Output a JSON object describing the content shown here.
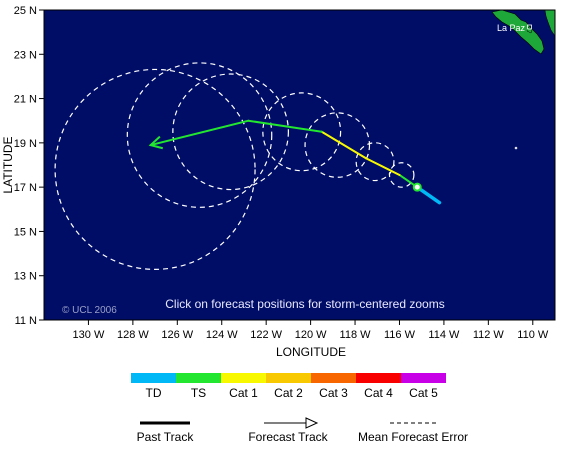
{
  "map": {
    "lon_range": [
      -132,
      -109
    ],
    "lat_range": [
      11,
      25
    ],
    "x_ticks": [
      {
        "lon": -130,
        "label": "130 W"
      },
      {
        "lon": -128,
        "label": "128 W"
      },
      {
        "lon": -126,
        "label": "126 W"
      },
      {
        "lon": -124,
        "label": "124 W"
      },
      {
        "lon": -122,
        "label": "122 W"
      },
      {
        "lon": -120,
        "label": "120 W"
      },
      {
        "lon": -118,
        "label": "118 W"
      },
      {
        "lon": -116,
        "label": "116 W"
      },
      {
        "lon": -114,
        "label": "114 W"
      },
      {
        "lon": -112,
        "label": "112 W"
      },
      {
        "lon": -110,
        "label": "110 W"
      }
    ],
    "y_ticks": [
      {
        "lat": 25,
        "label": "25 N"
      },
      {
        "lat": 23,
        "label": "23 N"
      },
      {
        "lat": 21,
        "label": "21 N"
      },
      {
        "lat": 19,
        "label": "19 N"
      },
      {
        "lat": 17,
        "label": "17 N"
      },
      {
        "lat": 15,
        "label": "15 N"
      },
      {
        "lat": 13,
        "label": "13 N"
      },
      {
        "lat": 11,
        "label": "11 N"
      }
    ],
    "xlabel": "LONGITUDE",
    "ylabel": "LATITUDE",
    "ocean_color": "#000d66",
    "land_color": "#1fa83a",
    "place_label": "La Paz",
    "copyright": "© UCL 2006",
    "click_hint": "Click on forecast positions for storm-centered zooms",
    "past_track": [
      {
        "lon": -114.2,
        "lat": 16.3,
        "category": "TD"
      },
      {
        "lon": -115.2,
        "lat": 17.0,
        "category": "TS"
      }
    ],
    "current_position": {
      "lon": -115.2,
      "lat": 17.0
    },
    "forecast_track": [
      {
        "lon": -115.2,
        "lat": 17.0,
        "category": "TS"
      },
      {
        "lon": -116.0,
        "lat": 17.55,
        "category": "TS"
      },
      {
        "lon": -117.5,
        "lat": 18.3,
        "category": "Cat 1"
      },
      {
        "lon": -119.5,
        "lat": 19.5,
        "category": "Cat 1"
      },
      {
        "lon": -122.8,
        "lat": 20.0,
        "category": "TS"
      },
      {
        "lon": -127.2,
        "lat": 18.9,
        "category": "TS"
      }
    ],
    "error_circles": [
      {
        "lon": -115.9,
        "lat": 17.55,
        "radius_deg": 0.55
      },
      {
        "lon": -117.1,
        "lat": 18.15,
        "radius_deg": 0.85
      },
      {
        "lon": -118.8,
        "lat": 18.9,
        "radius_deg": 1.45
      },
      {
        "lon": -120.4,
        "lat": 19.5,
        "radius_deg": 1.75
      },
      {
        "lon": -123.6,
        "lat": 19.5,
        "radius_deg": 2.6
      },
      {
        "lon": -125.0,
        "lat": 19.35,
        "radius_deg": 3.25
      },
      {
        "lon": -127.0,
        "lat": 17.8,
        "radius_deg": 4.5
      }
    ]
  },
  "legend": {
    "categories": [
      {
        "label": "TD",
        "color": "#00b8f5"
      },
      {
        "label": "TS",
        "color": "#22e62f"
      },
      {
        "label": "Cat 1",
        "color": "#f8f800"
      },
      {
        "label": "Cat 2",
        "color": "#f8c800"
      },
      {
        "label": "Cat 3",
        "color": "#f86600"
      },
      {
        "label": "Cat 4",
        "color": "#f80000"
      },
      {
        "label": "Cat 5",
        "color": "#c800e8"
      }
    ],
    "past_track_label": "Past Track",
    "forecast_track_label": "Forecast Track",
    "error_label": "Mean Forecast Error"
  }
}
